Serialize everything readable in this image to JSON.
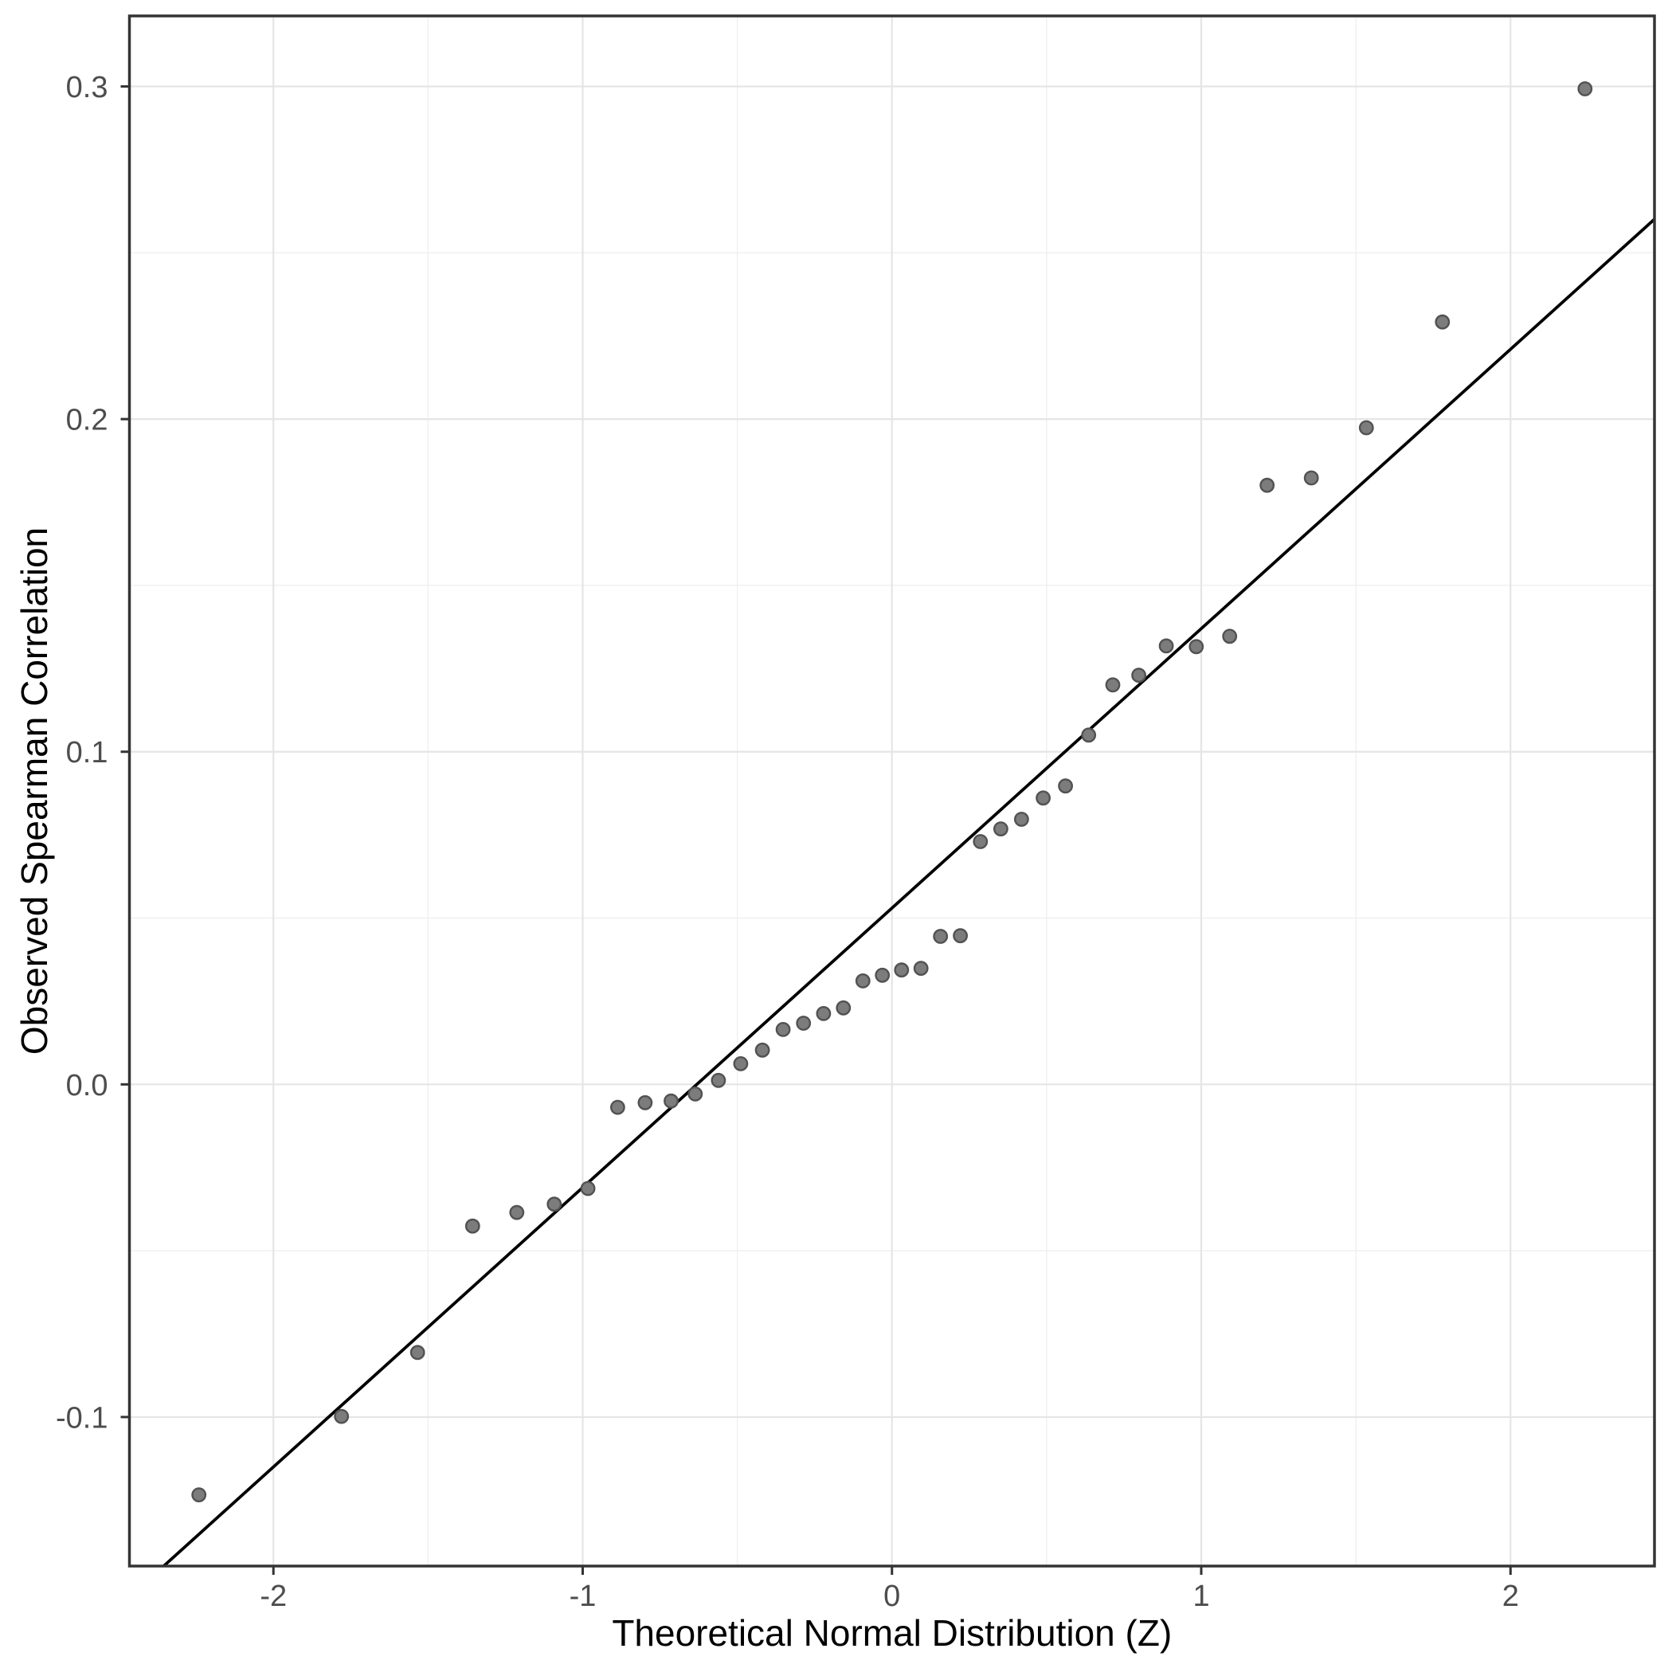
{
  "chart_data": {
    "type": "scatter",
    "title": "",
    "xlabel": "Theoretical Normal Distribution (Z)",
    "ylabel": "Observed Spearman Correlation",
    "xlim": [
      -2.4655,
      2.4655
    ],
    "ylim": [
      -0.1448,
      0.3212
    ],
    "grid": true,
    "legend_position": "none",
    "x_major_ticks": [
      {
        "label": "-2",
        "value": -2
      },
      {
        "label": "-1",
        "value": -1
      },
      {
        "label": "0",
        "value": 0
      },
      {
        "label": "1",
        "value": 1
      },
      {
        "label": "2",
        "value": 2
      }
    ],
    "y_major_ticks": [
      {
        "label": "-0.1",
        "value": -0.1
      },
      {
        "label": "0.0",
        "value": 0.0
      },
      {
        "label": "0.1",
        "value": 0.1
      },
      {
        "label": "0.2",
        "value": 0.2
      },
      {
        "label": "0.3",
        "value": 0.3
      }
    ],
    "x_minor_gridlines": [
      -1.5,
      -0.5,
      0.5,
      1.5
    ],
    "y_minor_gridlines": [
      -0.05,
      0.05,
      0.15,
      0.25
    ],
    "points": [
      [
        -2.241,
        -0.1234
      ],
      [
        -1.78,
        -0.0998
      ],
      [
        -1.534,
        -0.0806
      ],
      [
        -1.356,
        -0.0426
      ],
      [
        -1.213,
        -0.0385
      ],
      [
        -1.092,
        -0.036
      ],
      [
        -0.983,
        -0.0313
      ],
      [
        -0.887,
        -0.0069
      ],
      [
        -0.798,
        -0.0055
      ],
      [
        -0.714,
        -0.005
      ],
      [
        -0.636,
        -0.0029
      ],
      [
        -0.561,
        0.0012
      ],
      [
        -0.489,
        0.0062
      ],
      [
        -0.419,
        0.0103
      ],
      [
        -0.352,
        0.0165
      ],
      [
        -0.286,
        0.0184
      ],
      [
        -0.221,
        0.0213
      ],
      [
        -0.157,
        0.023
      ],
      [
        -0.094,
        0.0311
      ],
      [
        -0.031,
        0.0328
      ],
      [
        0.031,
        0.0344
      ],
      [
        0.094,
        0.0349
      ],
      [
        0.157,
        0.0445
      ],
      [
        0.221,
        0.0447
      ],
      [
        0.286,
        0.073
      ],
      [
        0.352,
        0.0768
      ],
      [
        0.419,
        0.0797
      ],
      [
        0.489,
        0.0861
      ],
      [
        0.561,
        0.0897
      ],
      [
        0.636,
        0.105
      ],
      [
        0.714,
        0.1201
      ],
      [
        0.798,
        0.123
      ],
      [
        0.887,
        0.1318
      ],
      [
        0.984,
        0.1316
      ],
      [
        1.092,
        0.1347
      ],
      [
        1.213,
        0.1801
      ],
      [
        1.356,
        0.1823
      ],
      [
        1.534,
        0.1974
      ],
      [
        1.78,
        0.2292
      ],
      [
        2.241,
        0.2993
      ]
    ],
    "reference_line": {
      "slope": 0.084,
      "intercept": 0.053
    },
    "colors": {
      "background": "#ffffff",
      "panel_background": "#ffffff",
      "panel_border": "#343434",
      "grid_major": "#e5e5e5",
      "grid_minor": "#f0f0f0",
      "reference_line": "#000000",
      "point_fill": "#7c7c7c",
      "point_stroke": "#525252",
      "tick_mark": "#333333",
      "tick_label": "#4d4d4d",
      "axis_title": "#000000"
    }
  }
}
